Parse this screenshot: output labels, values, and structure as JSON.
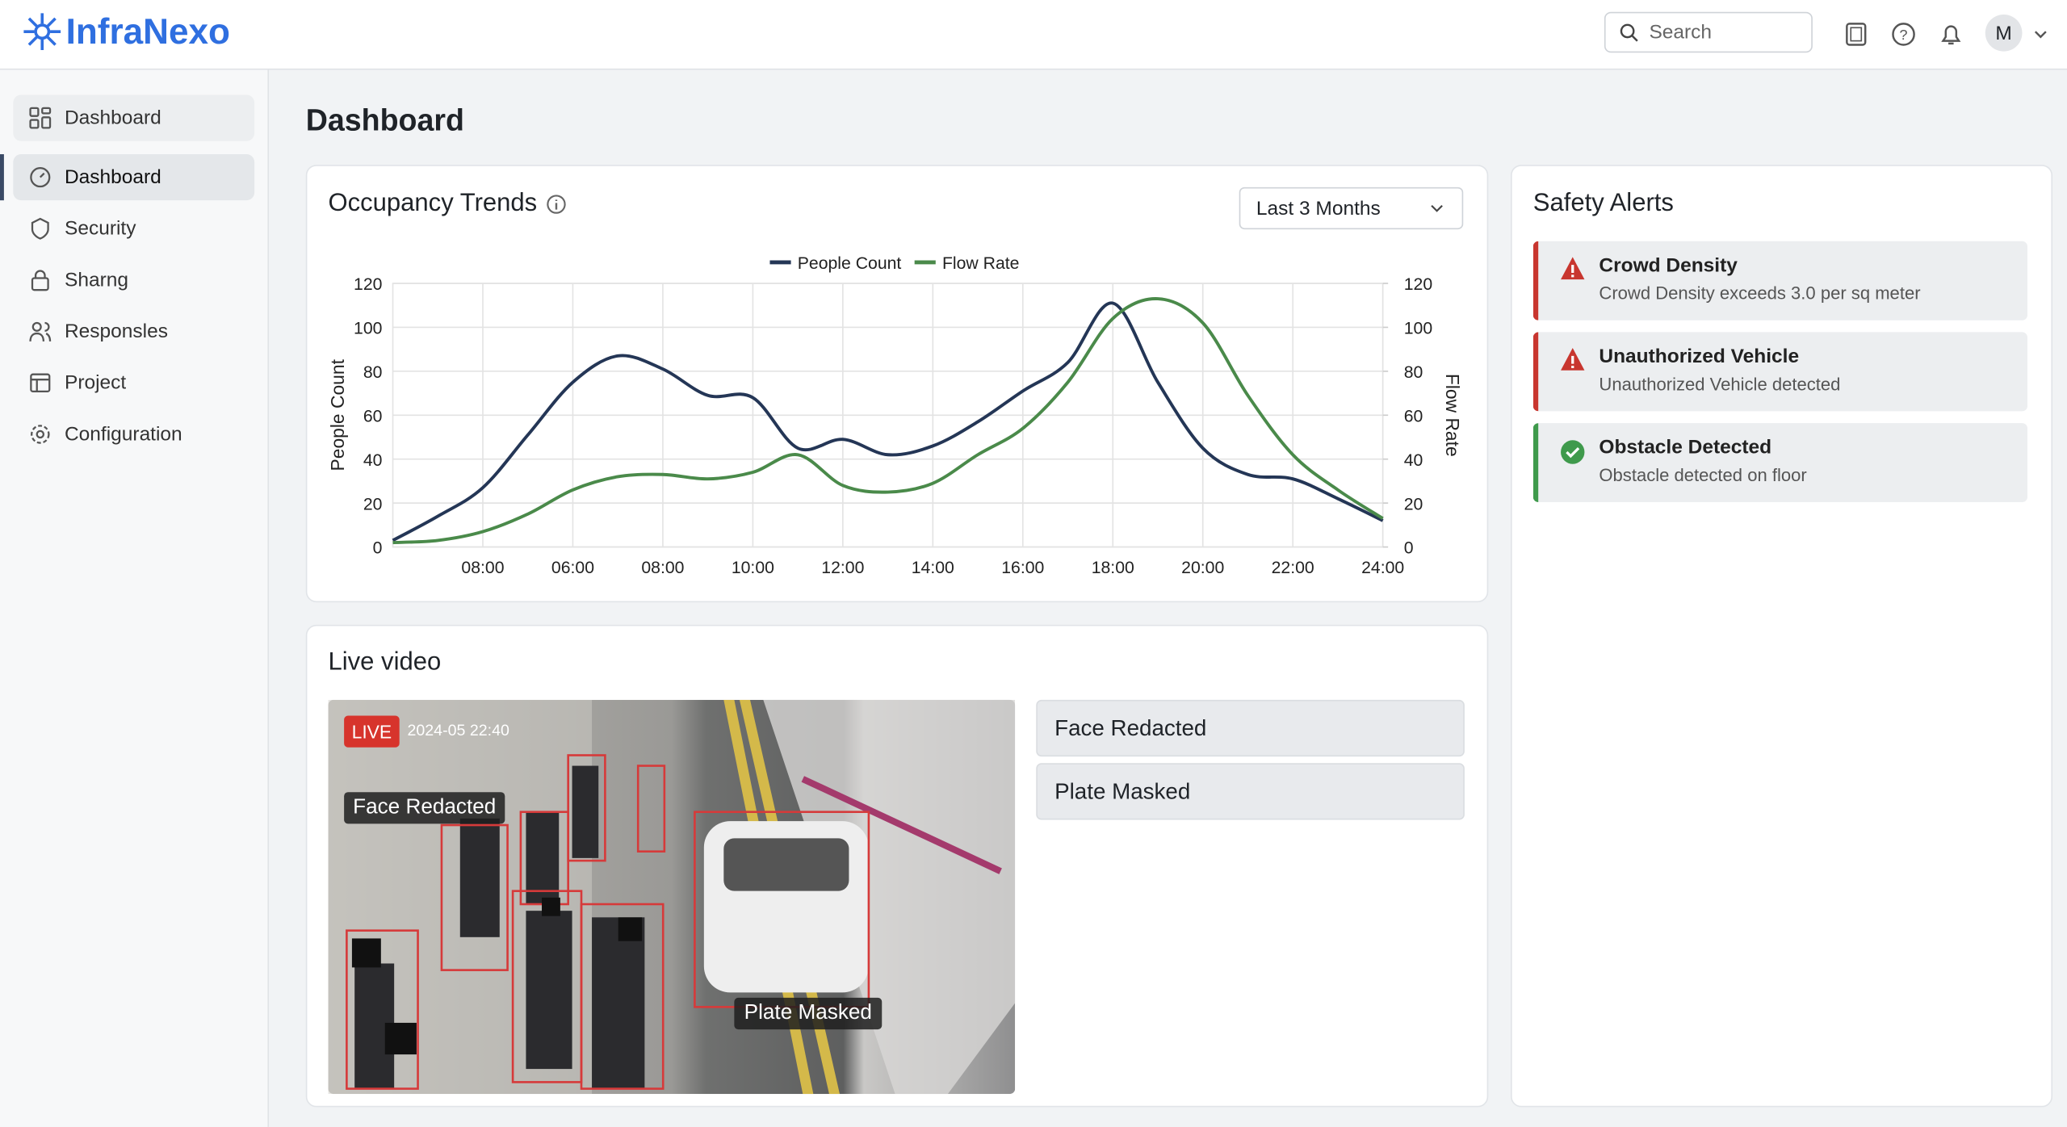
{
  "header": {
    "brand": "InfraNexo",
    "search_placeholder": "Search",
    "avatar": "M"
  },
  "sidebar": {
    "items": [
      "Dashboard",
      "Dashboard",
      "Security",
      "Sharng",
      "Responsles",
      "Project",
      "Configuration"
    ]
  },
  "page_title": "Dashboard",
  "chart_data": {
    "type": "line",
    "title": "Occupancy Trends",
    "range_select": "Last 3 Months",
    "y_label": "People Count",
    "y2_label": "Flow Rate",
    "categories": [
      null,
      null,
      "08:00",
      null,
      "06:00",
      null,
      "08:00",
      null,
      "10:00",
      null,
      "12:00",
      null,
      "14:00",
      null,
      "16:00",
      null,
      "18:00",
      null,
      "20:00",
      null,
      "22:00",
      null,
      "24:00"
    ],
    "series": [
      {
        "name": "People Count",
        "color": "#243656",
        "values": [
          3,
          14,
          27,
          51,
          75,
          87,
          81,
          69,
          68,
          45,
          49,
          42,
          46,
          57,
          71,
          84,
          111,
          75,
          45,
          33,
          31,
          22,
          12
        ]
      },
      {
        "name": "Flow Rate",
        "color": "#4a8a4a",
        "axis": "y2",
        "values": [
          2,
          3,
          7,
          15,
          26,
          32,
          33,
          31,
          34,
          42,
          28,
          25,
          29,
          42,
          54,
          75,
          104,
          113,
          102,
          69,
          42,
          26,
          13
        ]
      }
    ],
    "ylim": [
      0,
      120
    ],
    "yticks": [
      0,
      20,
      40,
      60,
      80,
      100,
      120
    ],
    "y2lim": [
      0,
      120
    ],
    "y2ticks": [
      0,
      20,
      40,
      60,
      80,
      100,
      120
    ],
    "grid": true,
    "legend": "top"
  },
  "live_video": {
    "title": "Live video",
    "live_badge": "LIVE",
    "timestamp": "2024-05 22:40",
    "overlays": [
      "Face Redacted",
      "Plate Masked"
    ],
    "toggles": [
      "Face Redacted",
      "Plate Masked"
    ]
  },
  "safety_alerts": {
    "title": "Safety Alerts",
    "items": [
      {
        "title": "Crowd Density",
        "detail": "Crowd Density exceeds 3.0 per sq meter"
      },
      {
        "title": "Unauthorized Vehicle",
        "detail": "Unauthorized Vehicle detected"
      },
      {
        "title": "Obstacle Detected",
        "detail": "Obstacle detected on floor"
      }
    ]
  }
}
